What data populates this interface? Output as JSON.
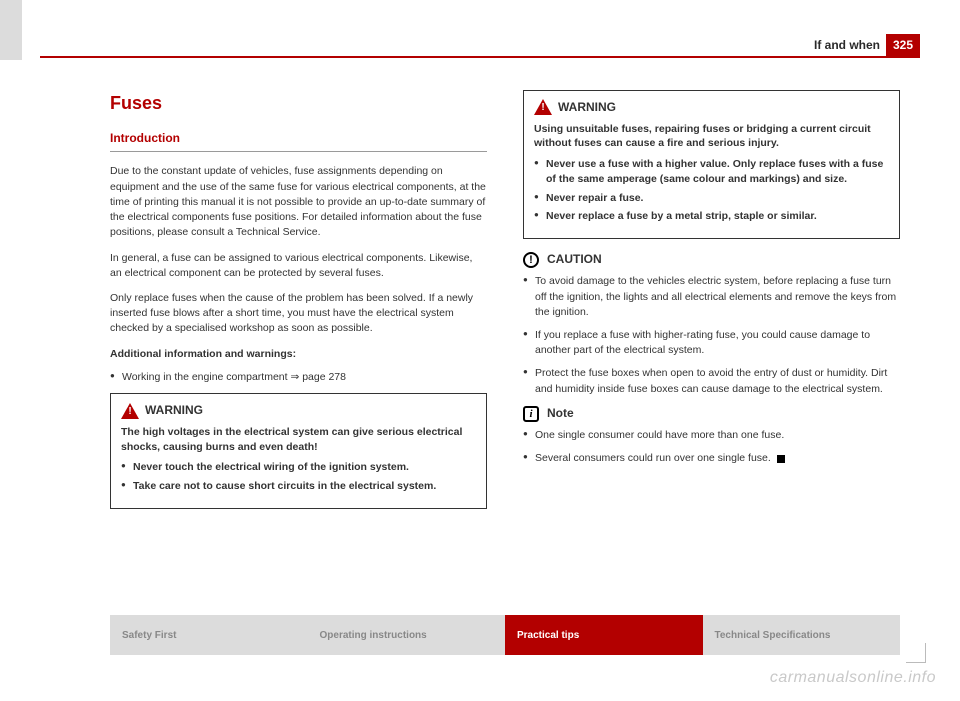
{
  "header": {
    "section": "If and when",
    "page_number": "325"
  },
  "left": {
    "title": "Fuses",
    "subtitle": "Introduction",
    "p1": "Due to the constant update of vehicles, fuse assignments depending on equipment and the use of the same fuse for various electrical components, at the time of printing this manual it is not possible to provide an up-to-date summary of the electrical components fuse positions. For detailed information about the fuse positions, please consult a Technical Service.",
    "p2": "In general, a fuse can be assigned to various electrical components. Likewise, an electrical component can be protected by several fuses.",
    "p3": "Only replace fuses when the cause of the problem has been solved. If a newly inserted fuse blows after a short time, you must have the electrical system checked by a specialised workshop as soon as possible.",
    "addl_title": "Additional information and warnings:",
    "addl_b1": "Working in the engine compartment ⇒ page 278",
    "warn1_title": "WARNING",
    "warn1_line1": "The high voltages in the electrical system can give serious electrical shocks, causing burns and even death!",
    "warn1_b1": "Never touch the electrical wiring of the ignition system.",
    "warn1_b2": "Take care not to cause short circuits in the electrical system."
  },
  "right": {
    "warn2_title": "WARNING",
    "warn2_line1": "Using unsuitable fuses, repairing fuses or bridging a current circuit without fuses can cause a fire and serious injury.",
    "warn2_b1": "Never use a fuse with a higher value. Only replace fuses with a fuse of the same amperage (same colour and markings) and size.",
    "warn2_b2": "Never repair a fuse.",
    "warn2_b3": "Never replace a fuse by a metal strip, staple or similar.",
    "caution_title": "CAUTION",
    "caution_b1": "To avoid damage to the vehicles electric system, before replacing a fuse turn off the ignition, the lights and all electrical elements and remove the keys from the ignition.",
    "caution_b2": "If you replace a fuse with higher-rating fuse, you could cause damage to another part of the electrical system.",
    "caution_b3": "Protect the fuse boxes when open to avoid the entry of dust or humidity. Dirt and humidity inside fuse boxes can cause damage to the electrical system.",
    "note_title": "Note",
    "note_b1": "One single consumer could have more than one fuse.",
    "note_b2": "Several consumers could run over one single fuse."
  },
  "footer": {
    "t1": "Safety First",
    "t2": "Operating instructions",
    "t3": "Practical tips",
    "t4": "Technical Specifications"
  },
  "watermark": "carmanualsonline.info",
  "colors": {
    "accent": "#b30000",
    "grey_tab": "#dcdcdc",
    "text": "#333333",
    "muted": "#888888"
  }
}
